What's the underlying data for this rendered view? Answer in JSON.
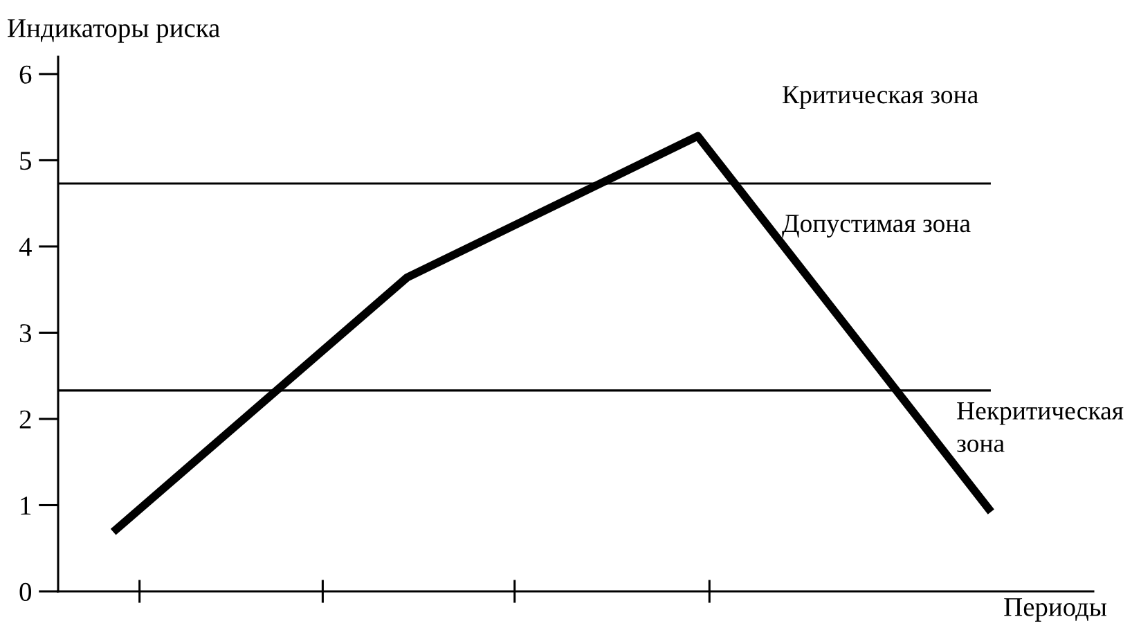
{
  "chart_data": {
    "type": "line",
    "ylabel": "Индикаторы риска",
    "xlabel": "Периоды",
    "categories": [
      null,
      null,
      null,
      null
    ],
    "series": [
      {
        "color": "#000000",
        "values": [
          0.72,
          3.64,
          5.28,
          0.96
        ]
      }
    ],
    "ylim": [
      0,
      6.2
    ],
    "yticks": [
      0,
      1,
      2,
      3,
      4,
      5,
      6
    ],
    "ref_lines": [
      {
        "axis": "y",
        "value": 4.73,
        "color": "#000000"
      },
      {
        "axis": "y",
        "value": 2.33,
        "color": "#000000"
      }
    ],
    "annotations": [
      "Критическая зона",
      "Допустимая зона",
      "Некритическая\nзона"
    ],
    "grid": false,
    "legend": false,
    "marker": "none",
    "line_style": "solid"
  }
}
